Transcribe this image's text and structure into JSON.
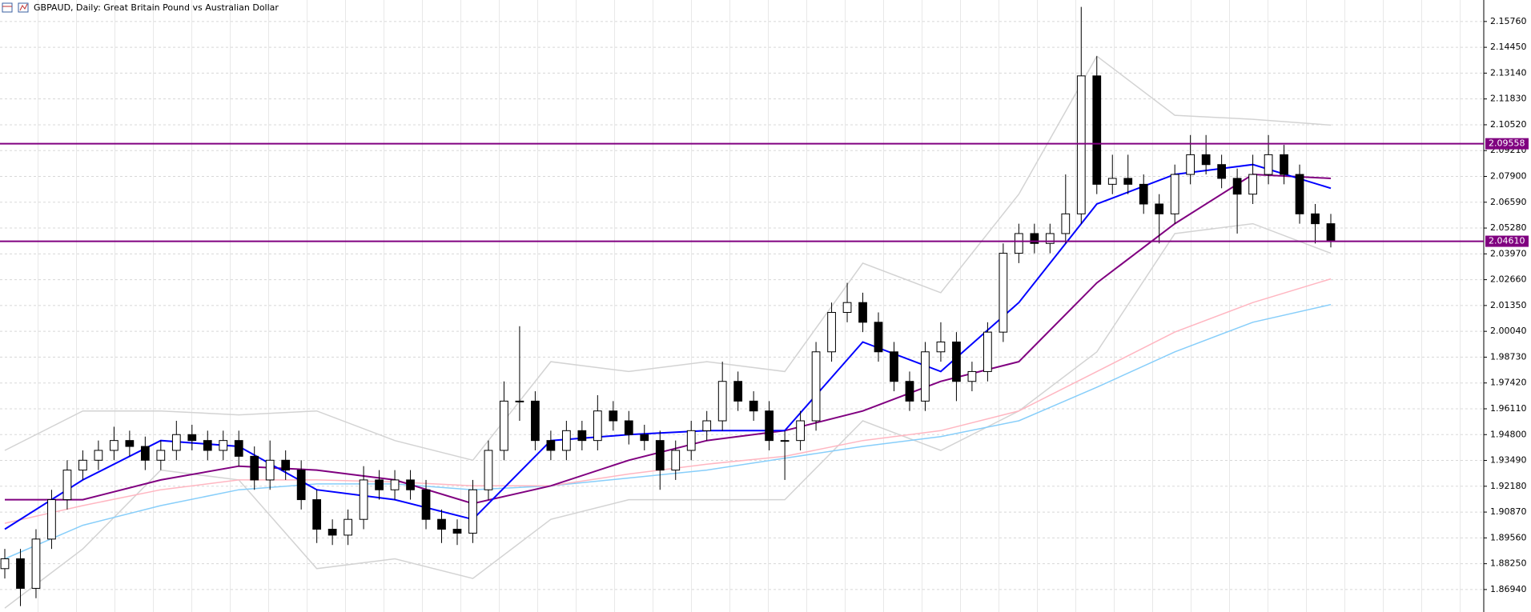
{
  "chart_data": {
    "type": "candlestick",
    "title": "GBPAUD, Daily:  Great Britain Pound vs Australian Dollar",
    "ylim": [
      1.858,
      2.1685
    ],
    "yticks": [
      {
        "value": 2.1576,
        "label": "2.15760"
      },
      {
        "value": 2.1445,
        "label": "2.14450"
      },
      {
        "value": 2.1314,
        "label": "2.13140"
      },
      {
        "value": 2.1183,
        "label": "2.11830"
      },
      {
        "value": 2.1052,
        "label": "2.10520"
      },
      {
        "value": 2.0921,
        "label": "2.09210"
      },
      {
        "value": 2.079,
        "label": "2.07900"
      },
      {
        "value": 2.0659,
        "label": "2.06590"
      },
      {
        "value": 2.0528,
        "label": "2.05280"
      },
      {
        "value": 2.0397,
        "label": "2.03970"
      },
      {
        "value": 2.0266,
        "label": "2.02660"
      },
      {
        "value": 2.0135,
        "label": "2.01350"
      },
      {
        "value": 2.0004,
        "label": "2.00040"
      },
      {
        "value": 1.9873,
        "label": "1.98730"
      },
      {
        "value": 1.9742,
        "label": "1.97420"
      },
      {
        "value": 1.9611,
        "label": "1.96110"
      },
      {
        "value": 1.948,
        "label": "1.94800"
      },
      {
        "value": 1.9349,
        "label": "1.93490"
      },
      {
        "value": 1.9218,
        "label": "1.92180"
      },
      {
        "value": 1.9087,
        "label": "1.90870"
      },
      {
        "value": 1.8956,
        "label": "1.89560"
      },
      {
        "value": 1.8825,
        "label": "1.88250"
      },
      {
        "value": 1.8694,
        "label": "1.86940"
      }
    ],
    "grid": true,
    "up_color": "#ffffff",
    "down_color": "#000000",
    "opens": [
      1.88,
      1.885,
      1.87,
      1.895,
      1.915,
      1.93,
      1.935,
      1.94,
      1.945,
      1.942,
      1.935,
      1.94,
      1.948,
      1.945,
      1.94,
      1.945,
      1.937,
      1.925,
      1.935,
      1.93,
      1.915,
      1.9,
      1.897,
      1.905,
      1.925,
      1.92,
      1.925,
      1.92,
      1.905,
      1.9,
      1.898,
      1.92,
      1.94,
      1.965,
      1.965,
      1.945,
      1.94,
      1.95,
      1.945,
      1.96,
      1.955,
      1.948,
      1.945,
      1.93,
      1.94,
      1.95,
      1.955,
      1.975,
      1.965,
      1.96,
      1.945,
      1.945,
      1.955,
      1.99,
      2.01,
      2.015,
      2.005,
      1.99,
      1.975,
      1.965,
      1.99,
      1.995,
      1.975,
      1.98,
      2.0,
      2.04,
      2.05,
      2.045,
      2.05,
      2.06,
      2.13,
      2.075,
      2.078,
      2.075,
      2.065,
      2.06,
      2.08,
      2.09,
      2.085,
      2.078,
      2.07,
      2.08,
      2.09,
      2.08,
      2.06,
      2.055
    ],
    "highs": [
      1.89,
      1.89,
      1.9,
      1.92,
      1.935,
      1.94,
      1.945,
      1.952,
      1.95,
      1.947,
      1.945,
      1.955,
      1.953,
      1.95,
      1.95,
      1.95,
      1.942,
      1.945,
      1.94,
      1.935,
      1.92,
      1.905,
      1.91,
      1.932,
      1.93,
      1.93,
      1.93,
      1.925,
      1.91,
      1.905,
      1.925,
      1.945,
      1.975,
      2.003,
      1.97,
      1.95,
      1.955,
      1.955,
      1.968,
      1.965,
      1.96,
      1.953,
      1.95,
      1.945,
      1.955,
      1.96,
      1.985,
      1.98,
      1.97,
      1.965,
      1.95,
      1.96,
      1.995,
      2.015,
      2.025,
      2.02,
      2.01,
      1.995,
      1.98,
      1.995,
      2.005,
      2.0,
      1.985,
      2.005,
      2.045,
      2.055,
      2.055,
      2.055,
      2.08,
      2.165,
      2.14,
      2.09,
      2.09,
      2.08,
      2.07,
      2.085,
      2.1,
      2.1,
      2.09,
      2.083,
      2.09,
      2.1,
      2.095,
      2.085,
      2.065,
      2.06
    ],
    "lows": [
      1.875,
      1.861,
      1.865,
      1.89,
      1.91,
      1.925,
      1.93,
      1.935,
      1.937,
      1.93,
      1.93,
      1.935,
      1.94,
      1.935,
      1.935,
      1.932,
      1.92,
      1.92,
      1.925,
      1.91,
      1.893,
      1.892,
      1.892,
      1.9,
      1.915,
      1.915,
      1.915,
      1.9,
      1.893,
      1.892,
      1.893,
      1.915,
      1.935,
      1.955,
      1.94,
      1.935,
      1.935,
      1.94,
      1.94,
      1.95,
      1.943,
      1.94,
      1.92,
      1.925,
      1.935,
      1.945,
      1.95,
      1.96,
      1.955,
      1.94,
      1.925,
      1.94,
      1.95,
      1.985,
      2.005,
      2.0,
      1.985,
      1.97,
      1.96,
      1.96,
      1.985,
      1.965,
      1.97,
      1.975,
      1.995,
      2.035,
      2.04,
      2.04,
      2.045,
      2.055,
      2.07,
      2.07,
      2.07,
      2.06,
      2.045,
      2.055,
      2.075,
      2.08,
      2.073,
      2.05,
      2.065,
      2.075,
      2.075,
      2.055,
      2.045,
      2.043
    ],
    "closes": [
      1.885,
      1.87,
      1.895,
      1.915,
      1.93,
      1.935,
      1.94,
      1.945,
      1.942,
      1.935,
      1.94,
      1.948,
      1.945,
      1.94,
      1.945,
      1.937,
      1.925,
      1.935,
      1.93,
      1.915,
      1.9,
      1.897,
      1.905,
      1.925,
      1.92,
      1.925,
      1.92,
      1.905,
      1.9,
      1.898,
      1.92,
      1.94,
      1.965,
      1.965,
      1.945,
      1.94,
      1.95,
      1.945,
      1.96,
      1.955,
      1.948,
      1.945,
      1.93,
      1.94,
      1.95,
      1.955,
      1.975,
      1.965,
      1.96,
      1.945,
      1.945,
      1.955,
      1.99,
      2.01,
      2.015,
      2.005,
      1.99,
      1.975,
      1.965,
      1.99,
      1.995,
      1.975,
      1.98,
      2.0,
      2.04,
      2.05,
      2.045,
      2.05,
      2.06,
      2.13,
      2.075,
      2.078,
      2.075,
      2.065,
      2.06,
      2.08,
      2.09,
      2.085,
      2.078,
      2.07,
      2.08,
      2.09,
      2.08,
      2.06,
      2.055,
      2.046
    ],
    "line_x": [
      0,
      5,
      10,
      15,
      20,
      25,
      30,
      35,
      40,
      45,
      50,
      55,
      60,
      65,
      70,
      75,
      80,
      85
    ],
    "lines": [
      {
        "color": "#d3d3d3",
        "values": [
          1.94,
          1.96,
          1.96,
          1.958,
          1.96,
          1.945,
          1.935,
          1.985,
          1.98,
          1.985,
          1.98,
          2.035,
          2.02,
          2.07,
          2.14,
          2.11,
          2.108,
          2.105
        ]
      },
      {
        "color": "#d3d3d3",
        "values": [
          1.86,
          1.89,
          1.93,
          1.925,
          1.88,
          1.885,
          1.875,
          1.905,
          1.915,
          1.915,
          1.915,
          1.955,
          1.94,
          1.96,
          1.99,
          2.05,
          2.055,
          2.04
        ]
      },
      {
        "color": "#87cefa",
        "values": [
          1.885,
          1.902,
          1.912,
          1.92,
          1.923,
          1.923,
          1.92,
          1.922,
          1.926,
          1.93,
          1.936,
          1.942,
          1.947,
          1.955,
          1.972,
          1.99,
          2.005,
          2.014
        ]
      },
      {
        "color": "#ffb6c1",
        "values": [
          1.903,
          1.912,
          1.92,
          1.925,
          1.925,
          1.924,
          1.922,
          1.922,
          1.928,
          1.933,
          1.937,
          1.945,
          1.95,
          1.96,
          1.98,
          2.0,
          2.015,
          2.027
        ]
      },
      {
        "color": "#800080",
        "values": [
          1.915,
          1.915,
          1.925,
          1.932,
          1.93,
          1.925,
          1.913,
          1.922,
          1.935,
          1.945,
          1.95,
          1.96,
          1.975,
          1.985,
          2.025,
          2.055,
          2.08,
          2.078
        ]
      },
      {
        "color": "#0000ff",
        "values": [
          1.9,
          1.925,
          1.945,
          1.942,
          1.92,
          1.915,
          1.905,
          1.945,
          1.948,
          1.95,
          1.95,
          1.995,
          1.98,
          2.015,
          2.065,
          2.08,
          2.085,
          2.073
        ]
      }
    ],
    "levels": [
      {
        "value": 2.09558,
        "label": "2.09558"
      },
      {
        "value": 2.0461,
        "label": "2.04610"
      }
    ],
    "level_color": "#800080"
  }
}
